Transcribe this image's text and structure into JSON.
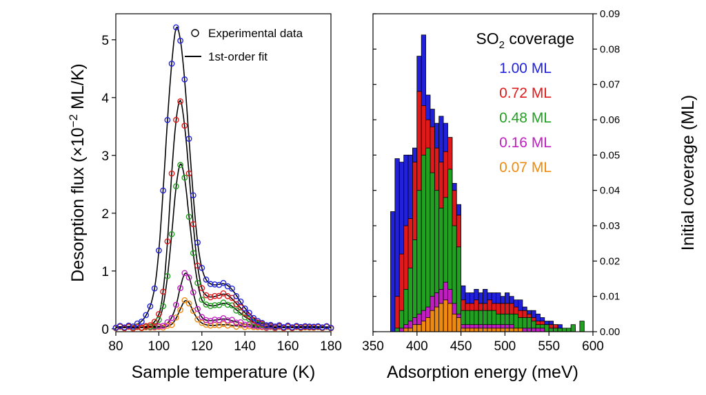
{
  "chart_data": [
    {
      "type": "line",
      "xlabel": "Sample temperature (K)",
      "ylabel": "Desorption flux (×10⁻² ML/K)",
      "ylabel_parts": {
        "pre": "Desorption flux (×10",
        "sup": "−2",
        "post": " ML/K)"
      },
      "xlim": [
        80,
        180
      ],
      "ylim": [
        -0.05,
        5.45
      ],
      "xticks": [
        80,
        100,
        120,
        140,
        160,
        180
      ],
      "yticks": [
        0,
        1,
        2,
        3,
        4,
        5
      ],
      "legend": {
        "placement": "top-right",
        "entries": [
          {
            "marker": "circle",
            "label": "Experimental data"
          },
          {
            "marker": "line",
            "label": "1st-order fit"
          }
        ]
      },
      "series": [
        {
          "coverage": "1.00 ML",
          "color": "#2121d9",
          "x": [
            80,
            90,
            95,
            98,
            100,
            102,
            104,
            106,
            108,
            110,
            112,
            114,
            116,
            118,
            120,
            122,
            124,
            126,
            128,
            130,
            132,
            134,
            136,
            138,
            140,
            142,
            145,
            150,
            155,
            160,
            170,
            180
          ],
          "y": [
            0.03,
            0.08,
            0.3,
            0.7,
            1.35,
            2.4,
            3.6,
            4.6,
            5.2,
            5.0,
            4.3,
            3.3,
            2.3,
            1.5,
            1.05,
            0.85,
            0.78,
            0.76,
            0.77,
            0.78,
            0.75,
            0.68,
            0.58,
            0.46,
            0.36,
            0.27,
            0.16,
            0.07,
            0.05,
            0.04,
            0.04,
            0.03
          ]
        },
        {
          "coverage": "0.72 ML",
          "color": "#e01a1a",
          "x": [
            80,
            95,
            100,
            102,
            104,
            106,
            108,
            110,
            112,
            114,
            116,
            118,
            120,
            122,
            124,
            126,
            128,
            130,
            132,
            134,
            136,
            138,
            140,
            145,
            150,
            155,
            160,
            170,
            180
          ],
          "y": [
            0.03,
            0.05,
            0.25,
            0.65,
            1.5,
            2.7,
            3.6,
            3.95,
            3.5,
            2.7,
            1.8,
            1.1,
            0.7,
            0.58,
            0.55,
            0.56,
            0.58,
            0.6,
            0.58,
            0.52,
            0.44,
            0.36,
            0.28,
            0.13,
            0.06,
            0.04,
            0.03,
            0.03,
            0.03
          ]
        },
        {
          "coverage": "0.48 ML",
          "color": "#22a022",
          "x": [
            80,
            98,
            100,
            102,
            104,
            106,
            108,
            110,
            112,
            114,
            116,
            118,
            120,
            122,
            124,
            126,
            128,
            130,
            132,
            134,
            136,
            138,
            140,
            145,
            150,
            160,
            170,
            180
          ],
          "y": [
            0.03,
            0.05,
            0.15,
            0.4,
            0.9,
            1.65,
            2.45,
            2.85,
            2.6,
            1.95,
            1.3,
            0.8,
            0.5,
            0.42,
            0.4,
            0.4,
            0.42,
            0.44,
            0.43,
            0.39,
            0.33,
            0.27,
            0.21,
            0.1,
            0.05,
            0.03,
            0.03,
            0.03
          ]
        },
        {
          "coverage": "0.16 ML",
          "color": "#c01ec0",
          "x": [
            80,
            100,
            104,
            106,
            108,
            110,
            112,
            114,
            116,
            118,
            120,
            122,
            124,
            126,
            128,
            130,
            132,
            134,
            136,
            138,
            140,
            145,
            150,
            160,
            170,
            180
          ],
          "y": [
            0.03,
            0.04,
            0.1,
            0.2,
            0.4,
            0.72,
            0.95,
            0.9,
            0.62,
            0.35,
            0.2,
            0.15,
            0.14,
            0.15,
            0.16,
            0.17,
            0.16,
            0.14,
            0.12,
            0.1,
            0.08,
            0.05,
            0.03,
            0.03,
            0.03,
            0.03
          ]
        },
        {
          "coverage": "0.07 ML",
          "color": "#ee8a10",
          "x": [
            80,
            102,
            106,
            108,
            110,
            112,
            114,
            116,
            118,
            120,
            122,
            124,
            126,
            128,
            130,
            132,
            134,
            136,
            138,
            140,
            145,
            150,
            160,
            170,
            180
          ],
          "y": [
            0.02,
            0.03,
            0.08,
            0.18,
            0.34,
            0.48,
            0.45,
            0.3,
            0.17,
            0.1,
            0.07,
            0.06,
            0.06,
            0.07,
            0.07,
            0.07,
            0.06,
            0.05,
            0.05,
            0.04,
            0.03,
            0.02,
            0.02,
            0.02,
            0.02
          ]
        }
      ]
    },
    {
      "type": "bar",
      "stacked": false,
      "xlabel": "Adsorption energy (meV)",
      "ylabel": "Initial coverage (ML)",
      "y_axis_side": "right",
      "xlim": [
        350,
        600
      ],
      "ylim": [
        0,
        0.09
      ],
      "xticks": [
        350,
        400,
        450,
        500,
        550,
        600
      ],
      "yticks": [
        0,
        0.01,
        0.02,
        0.03,
        0.04,
        0.05,
        0.06,
        0.07,
        0.08,
        0.09
      ],
      "ytick_labels": [
        "0.00",
        "0.01",
        "0.02",
        "0.03",
        "0.04",
        "0.05",
        "0.06",
        "0.07",
        "0.08",
        "0.09"
      ],
      "bin_width": 5,
      "legend": {
        "placement": "top-right",
        "title_parts": {
          "pre": "SO",
          "sub": "2",
          "post": " coverage"
        }
      },
      "bin_starts": [
        370,
        375,
        380,
        385,
        390,
        395,
        400,
        405,
        410,
        415,
        420,
        425,
        430,
        435,
        440,
        445,
        450,
        455,
        460,
        465,
        470,
        475,
        480,
        485,
        490,
        495,
        500,
        505,
        510,
        515,
        520,
        525,
        530,
        535,
        540,
        545,
        550,
        555,
        560,
        565,
        570,
        575,
        580,
        585
      ],
      "series": [
        {
          "name": "1.00 ML",
          "color": "#2121d9",
          "values": [
            0.034,
            0.049,
            0.048,
            0.05,
            0.05,
            0.052,
            0.078,
            0.084,
            0.067,
            0.063,
            0.059,
            0.061,
            0.059,
            0.055,
            0.042,
            0.036,
            0.013,
            0.011,
            0.011,
            0.012,
            0.011,
            0.012,
            0.011,
            0.011,
            0.011,
            0.01,
            0.011,
            0.01,
            0.009,
            0.009,
            0.007,
            0.006,
            0.006,
            0.005,
            0.004,
            0.003,
            0.003,
            0.002,
            0.002,
            0.001,
            0.001,
            0.001,
            0.0,
            0.0
          ]
        },
        {
          "name": "0.72 ML",
          "color": "#e01a1a",
          "values": [
            0.0,
            0.01,
            0.022,
            0.03,
            0.032,
            0.048,
            0.068,
            0.064,
            0.06,
            0.058,
            0.052,
            0.048,
            0.051,
            0.055,
            0.04,
            0.033,
            0.009,
            0.008,
            0.008,
            0.009,
            0.008,
            0.008,
            0.009,
            0.008,
            0.008,
            0.008,
            0.008,
            0.008,
            0.007,
            0.006,
            0.006,
            0.005,
            0.004,
            0.003,
            0.003,
            0.002,
            0.002,
            0.002,
            0.001,
            0.001,
            0.001,
            0.001,
            0.0,
            0.0
          ]
        },
        {
          "name": "0.48 ML",
          "color": "#22a022",
          "values": [
            0.0,
            0.001,
            0.006,
            0.012,
            0.018,
            0.026,
            0.04,
            0.05,
            0.052,
            0.045,
            0.04,
            0.035,
            0.038,
            0.046,
            0.03,
            0.024,
            0.006,
            0.006,
            0.006,
            0.006,
            0.006,
            0.006,
            0.006,
            0.006,
            0.005,
            0.005,
            0.005,
            0.005,
            0.005,
            0.004,
            0.004,
            0.004,
            0.003,
            0.002,
            0.002,
            0.002,
            0.001,
            0.001,
            0.001,
            0.001,
            0.001,
            0.002,
            0.0,
            0.003
          ]
        },
        {
          "name": "0.16 ML",
          "color": "#c01ec0",
          "values": [
            0.0,
            0.0,
            0.001,
            0.002,
            0.003,
            0.004,
            0.005,
            0.006,
            0.007,
            0.01,
            0.011,
            0.012,
            0.014,
            0.012,
            0.008,
            0.005,
            0.002,
            0.002,
            0.002,
            0.002,
            0.002,
            0.002,
            0.002,
            0.002,
            0.002,
            0.002,
            0.002,
            0.002,
            0.001,
            0.001,
            0.001,
            0.001,
            0.001,
            0.001,
            0.001,
            0.0,
            0.0,
            0.0,
            0.0,
            0.0,
            0.0,
            0.0,
            0.0,
            0.0
          ]
        },
        {
          "name": "0.07 ML",
          "color": "#ee8a10",
          "values": [
            0.0,
            0.0,
            0.0,
            0.001,
            0.001,
            0.002,
            0.002,
            0.003,
            0.004,
            0.006,
            0.007,
            0.008,
            0.009,
            0.008,
            0.005,
            0.004,
            0.001,
            0.001,
            0.001,
            0.001,
            0.001,
            0.001,
            0.001,
            0.001,
            0.001,
            0.001,
            0.001,
            0.001,
            0.001,
            0.001,
            0.0,
            0.0,
            0.0,
            0.0,
            0.0,
            0.0,
            0.0,
            0.0,
            0.0,
            0.0,
            0.0,
            0.0,
            0.0,
            0.0
          ]
        }
      ]
    }
  ]
}
